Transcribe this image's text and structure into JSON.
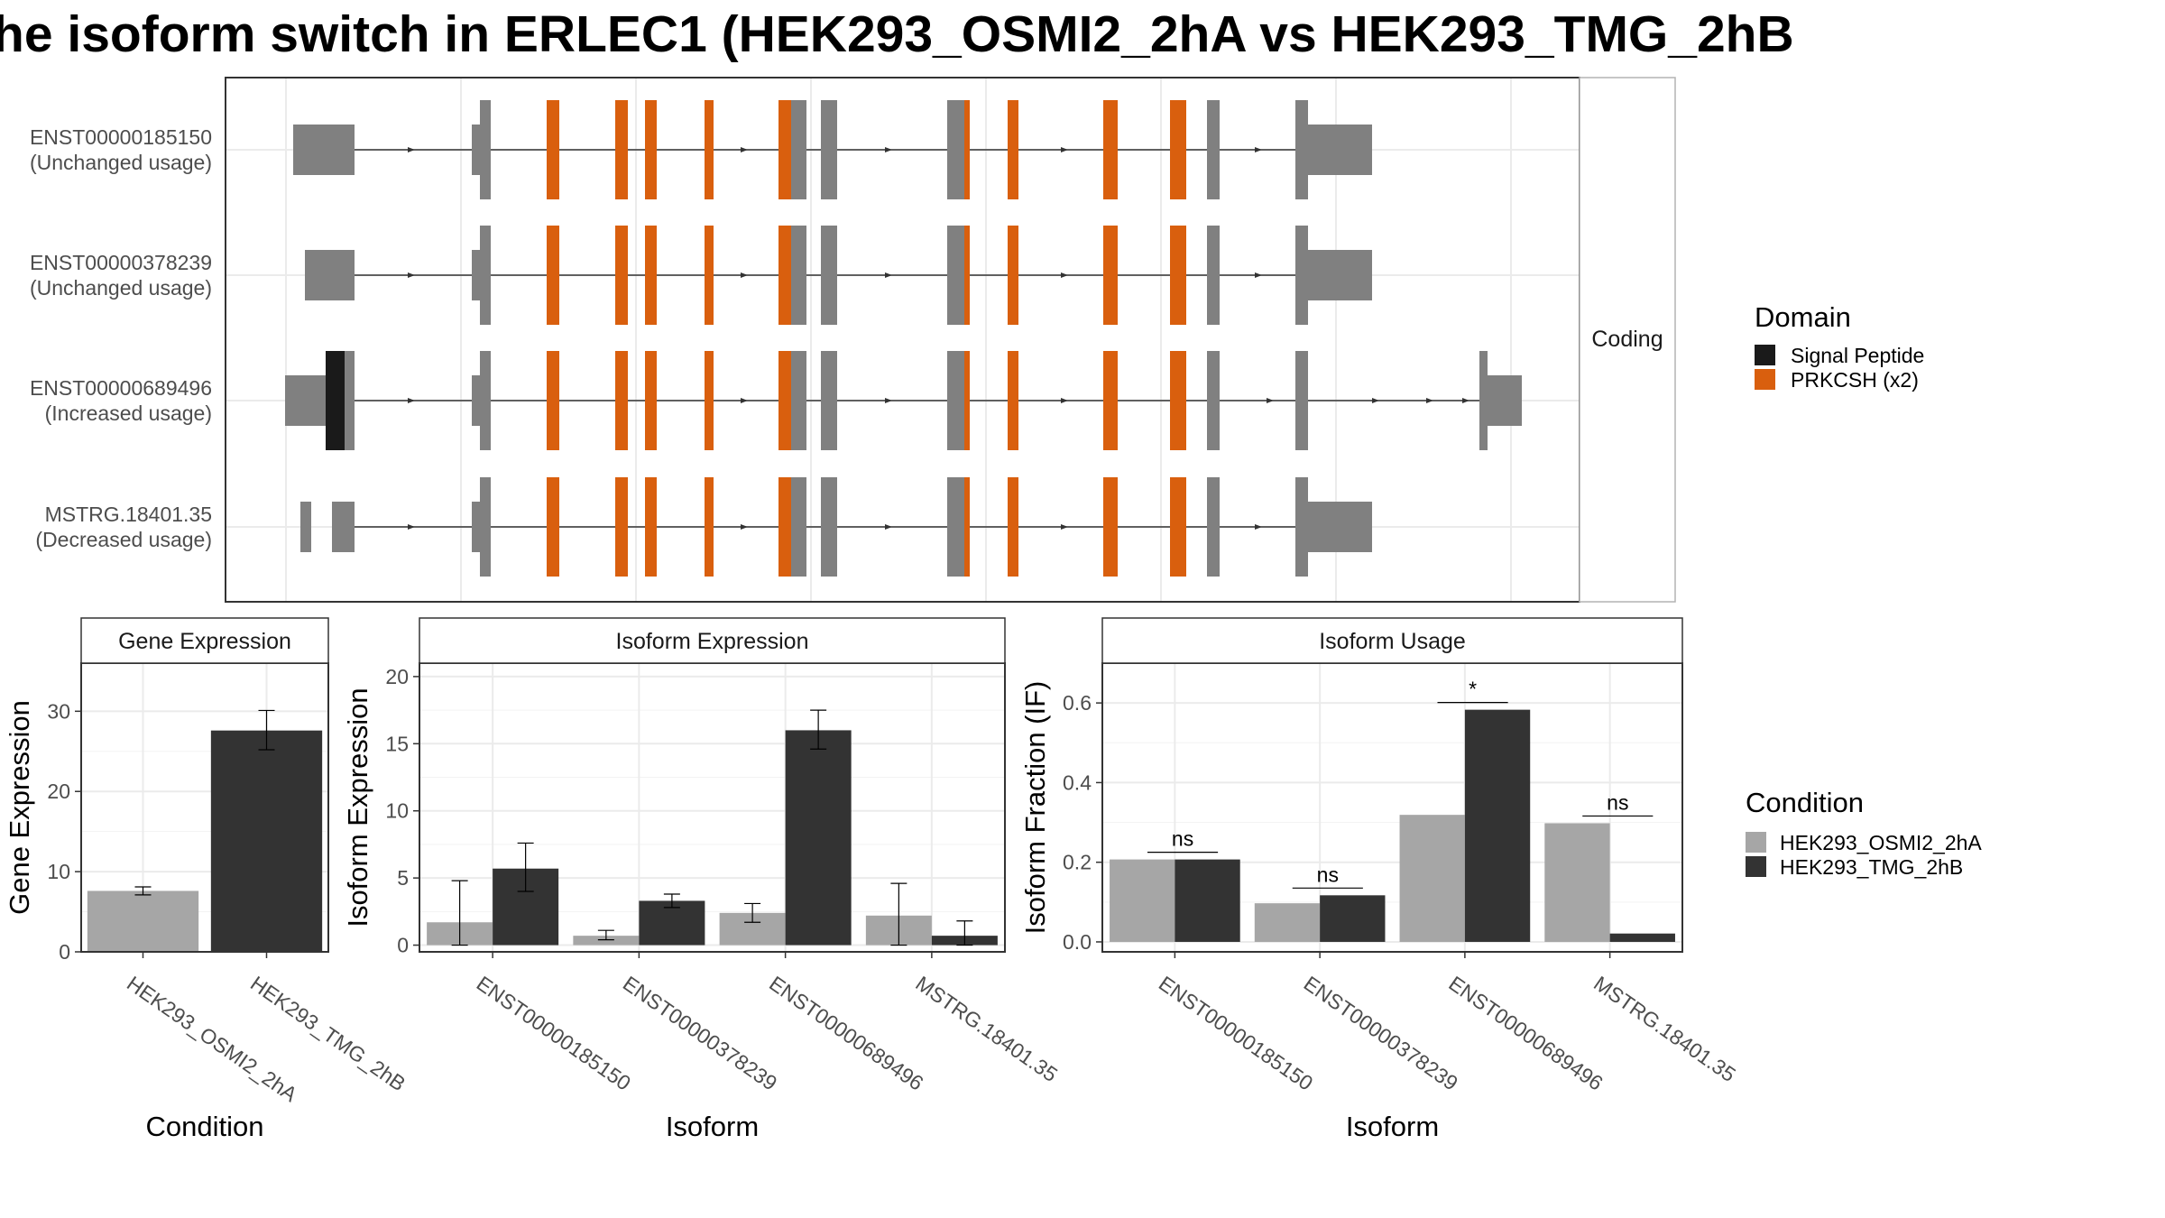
{
  "title": "he isoform switch in ERLEC1 (HEK293_OSMI2_2hA vs HEK293_TMG_2hB",
  "colors": {
    "cond_a": "#a6a6a6",
    "cond_b": "#333333",
    "exon": "#808080",
    "signal_peptide": "#1a1a1a",
    "prkcsh": "#d95f0e",
    "grid": "#ebebeb",
    "panel_border": "#333333"
  },
  "structure": {
    "strip_label": "Coding",
    "isoforms": [
      {
        "id": "ENST00000185150",
        "status": "(Unchanged usage)"
      },
      {
        "id": "ENST00000378239",
        "status": "(Unchanged usage)"
      },
      {
        "id": "ENST00000689496",
        "status": "(Increased usage)"
      },
      {
        "id": "MSTRG.18401.35",
        "status": "(Decreased usage)"
      }
    ]
  },
  "domain_legend": {
    "title": "Domain",
    "items": [
      {
        "label": "Signal Peptide",
        "color": "#1a1a1a"
      },
      {
        "label": "PRKCSH (x2)",
        "color": "#d95f0e"
      }
    ]
  },
  "condition_legend": {
    "title": "Condition",
    "items": [
      {
        "label": "HEK293_OSMI2_2hA",
        "color": "#a6a6a6"
      },
      {
        "label": "HEK293_TMG_2hB",
        "color": "#333333"
      }
    ]
  },
  "chart_data": [
    {
      "type": "bar",
      "title": "Gene Expression",
      "xlabel": "Condition",
      "ylabel": "Gene Expression",
      "categories": [
        "HEK293_OSMI2_2hA",
        "HEK293_TMG_2hB"
      ],
      "values": [
        7.6,
        27.6
      ],
      "error": [
        [
          7.1,
          8.1
        ],
        [
          25.2,
          30.1
        ]
      ],
      "ylim": [
        0,
        36
      ],
      "yticks": [
        0,
        10,
        20,
        30
      ],
      "grid": true
    },
    {
      "type": "bar",
      "title": "Isoform Expression",
      "xlabel": "Isoform",
      "ylabel": "Isoform Expression",
      "categories": [
        "ENST00000185150",
        "ENST00000378239",
        "ENST00000689496",
        "MSTRG.18401.35"
      ],
      "series": [
        {
          "name": "HEK293_OSMI2_2hA",
          "values": [
            1.7,
            0.7,
            2.4,
            2.2
          ],
          "error": [
            [
              0.0,
              4.8
            ],
            [
              0.4,
              1.1
            ],
            [
              1.7,
              3.1
            ],
            [
              0.0,
              4.6
            ]
          ]
        },
        {
          "name": "HEK293_TMG_2hB",
          "values": [
            5.7,
            3.3,
            16.0,
            0.7
          ],
          "error": [
            [
              4.0,
              7.6
            ],
            [
              2.8,
              3.8
            ],
            [
              14.6,
              17.5
            ],
            [
              0.0,
              1.8
            ]
          ]
        }
      ],
      "ylim": [
        -0.5,
        21
      ],
      "yticks": [
        0,
        5,
        10,
        15,
        20
      ],
      "grid": true
    },
    {
      "type": "bar",
      "title": "Isoform Usage",
      "xlabel": "Isoform",
      "ylabel": "Isoform Fraction (IF)",
      "categories": [
        "ENST00000185150",
        "ENST00000378239",
        "ENST00000689496",
        "MSTRG.18401.35"
      ],
      "series": [
        {
          "name": "HEK293_OSMI2_2hA",
          "values": [
            0.207,
            0.097,
            0.319,
            0.298
          ]
        },
        {
          "name": "HEK293_TMG_2hB",
          "values": [
            0.207,
            0.117,
            0.583,
            0.021
          ]
        }
      ],
      "significance": [
        "ns",
        "ns",
        "*",
        "ns"
      ],
      "ylim": [
        -0.025,
        0.7
      ],
      "yticks": [
        "0.0",
        "0.2",
        "0.4",
        "0.6"
      ],
      "grid": true
    }
  ]
}
